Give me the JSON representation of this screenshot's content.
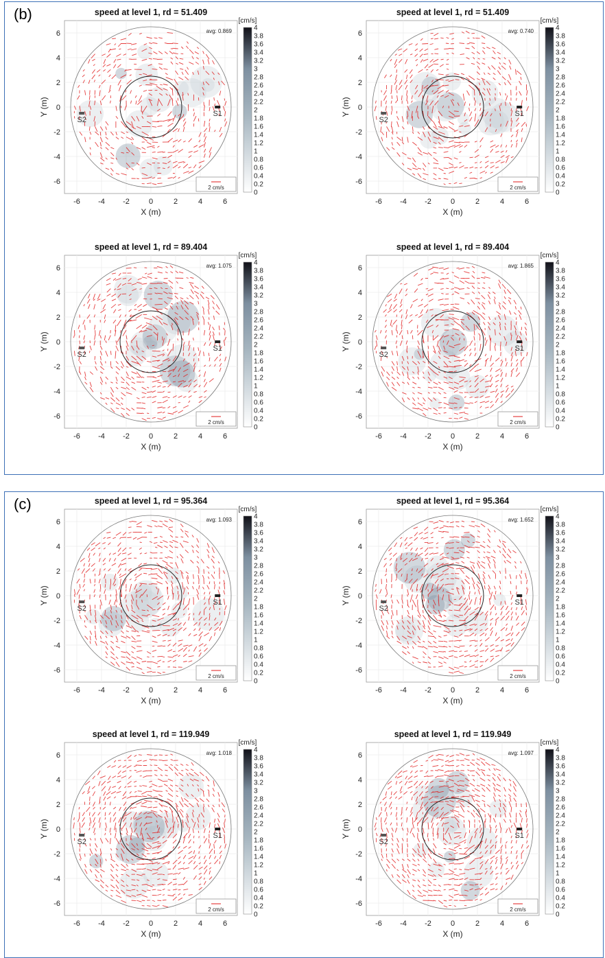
{
  "groups": [
    {
      "label": "(b)"
    },
    {
      "label": "(c)"
    }
  ],
  "colors": {
    "frame": "#3b6fb6",
    "vector": "#e11b1b",
    "speed_low": "#ffffff",
    "speed_mid": "#7d8fa0",
    "speed_high": "#111118"
  },
  "chart_data": [
    {
      "type": "heatmap",
      "group": "(b)",
      "title": "speed at level 1, rd = 51.409",
      "avg": "avg: 0.869",
      "xlabel": "X (m)",
      "ylabel": "Y (m)",
      "xlim": [
        -7,
        7
      ],
      "ylim": [
        -7,
        7
      ],
      "xticks": [
        "-6",
        "-4",
        "-2",
        "0",
        "2",
        "4",
        "6"
      ],
      "yticks": [
        "6",
        "4",
        "2",
        "0",
        "-2",
        "-4",
        "-6"
      ],
      "colorbar_unit": "[cm/s]",
      "colorbar_ticks": [
        "4",
        "3.8",
        "3.6",
        "3.4",
        "3.2",
        "3",
        "2.8",
        "2.6",
        "2.4",
        "2.2",
        "2",
        "1.8",
        "1.6",
        "1.4",
        "1.2",
        "1",
        "0.8",
        "0.6",
        "0.4",
        "0.2",
        "0"
      ],
      "stations": [
        "S1",
        "S2"
      ],
      "reference_vector": "2 cm/s",
      "outer_circle_radius": 6.5,
      "inner_circle_radius": 2.5,
      "grid": true
    },
    {
      "type": "heatmap",
      "group": "(b)",
      "title": "speed at level 1, rd = 51.409",
      "avg": "avg: 0.740",
      "xlabel": "X (m)",
      "ylabel": "Y (m)",
      "xlim": [
        -7,
        7
      ],
      "ylim": [
        -7,
        7
      ],
      "xticks": [
        "-6",
        "-4",
        "-2",
        "0",
        "2",
        "4",
        "6"
      ],
      "yticks": [
        "6",
        "4",
        "2",
        "0",
        "-2",
        "-4",
        "-6"
      ],
      "colorbar_unit": "[cm/s]",
      "colorbar_ticks": [
        "4",
        "3.8",
        "3.6",
        "3.4",
        "3.2",
        "3",
        "2.8",
        "2.6",
        "2.4",
        "2.2",
        "2",
        "1.8",
        "1.6",
        "1.4",
        "1.2",
        "1",
        "0.8",
        "0.6",
        "0.4",
        "0.2",
        "0"
      ],
      "stations": [
        "S1",
        "S2"
      ],
      "reference_vector": "2 cm/s",
      "outer_circle_radius": 6.5,
      "inner_circle_radius": 2.5,
      "grid": true
    },
    {
      "type": "heatmap",
      "group": "(b)",
      "title": "speed at level 1, rd = 89.404",
      "avg": "avg: 1.075",
      "xlabel": "X (m)",
      "ylabel": "Y (m)",
      "xlim": [
        -7,
        7
      ],
      "ylim": [
        -7,
        7
      ],
      "xticks": [
        "-6",
        "-4",
        "-2",
        "0",
        "2",
        "4",
        "6"
      ],
      "yticks": [
        "6",
        "4",
        "2",
        "0",
        "-2",
        "-4",
        "-6"
      ],
      "colorbar_unit": "[cm/s]",
      "colorbar_ticks": [
        "4",
        "3.8",
        "3.6",
        "3.4",
        "3.2",
        "3",
        "2.8",
        "2.6",
        "2.4",
        "2.2",
        "2",
        "1.8",
        "1.6",
        "1.4",
        "1.2",
        "1",
        "0.8",
        "0.6",
        "0.4",
        "0.2",
        "0"
      ],
      "stations": [
        "S1",
        "S2"
      ],
      "reference_vector": "2 cm/s",
      "outer_circle_radius": 6.5,
      "inner_circle_radius": 2.5,
      "grid": true
    },
    {
      "type": "heatmap",
      "group": "(b)",
      "title": "speed at level 1, rd = 89.404",
      "avg": "avg: 1.865",
      "xlabel": "X (m)",
      "ylabel": "Y (m)",
      "xlim": [
        -7,
        7
      ],
      "ylim": [
        -7,
        7
      ],
      "xticks": [
        "-6",
        "-4",
        "-2",
        "0",
        "2",
        "4",
        "6"
      ],
      "yticks": [
        "6",
        "4",
        "2",
        "0",
        "-2",
        "-4",
        "-6"
      ],
      "colorbar_unit": "[cm/s]",
      "colorbar_ticks": [
        "4",
        "3.8",
        "3.6",
        "3.4",
        "3.2",
        "3",
        "2.8",
        "2.6",
        "2.4",
        "2.2",
        "2",
        "1.8",
        "1.6",
        "1.4",
        "1.2",
        "1",
        "0.8",
        "0.6",
        "0.4",
        "0.2",
        "0"
      ],
      "stations": [
        "S1",
        "S2"
      ],
      "reference_vector": "2 cm/s",
      "outer_circle_radius": 6.5,
      "inner_circle_radius": 2.5,
      "grid": true
    },
    {
      "type": "heatmap",
      "group": "(c)",
      "title": "speed at level 1, rd = 95.364",
      "avg": "avg: 1.093",
      "xlabel": "X (m)",
      "ylabel": "Y (m)",
      "xlim": [
        -7,
        7
      ],
      "ylim": [
        -7,
        7
      ],
      "xticks": [
        "-6",
        "-4",
        "-2",
        "0",
        "2",
        "4",
        "6"
      ],
      "yticks": [
        "6",
        "4",
        "2",
        "0",
        "-2",
        "-4",
        "-6"
      ],
      "colorbar_unit": "[cm/s]",
      "colorbar_ticks": [
        "4",
        "3.8",
        "3.6",
        "3.4",
        "3.2",
        "3",
        "2.8",
        "2.6",
        "2.4",
        "2.2",
        "2",
        "1.8",
        "1.6",
        "1.4",
        "1.2",
        "1",
        "0.8",
        "0.6",
        "0.4",
        "0.2",
        "0"
      ],
      "stations": [
        "S1",
        "S2"
      ],
      "reference_vector": "2 cm/s",
      "outer_circle_radius": 6.5,
      "inner_circle_radius": 2.5,
      "grid": true
    },
    {
      "type": "heatmap",
      "group": "(c)",
      "title": "speed at level 1, rd = 95.364",
      "avg": "avg: 1.652",
      "xlabel": "X (m)",
      "ylabel": "Y (m)",
      "xlim": [
        -7,
        7
      ],
      "ylim": [
        -7,
        7
      ],
      "xticks": [
        "-6",
        "-4",
        "-2",
        "0",
        "2",
        "4",
        "6"
      ],
      "yticks": [
        "6",
        "4",
        "2",
        "0",
        "-2",
        "-4",
        "-6"
      ],
      "colorbar_unit": "[cm/s]",
      "colorbar_ticks": [
        "4",
        "3.8",
        "3.6",
        "3.4",
        "3.2",
        "3",
        "2.8",
        "2.6",
        "2.4",
        "2.2",
        "2",
        "1.8",
        "1.6",
        "1.4",
        "1.2",
        "1",
        "0.8",
        "0.6",
        "0.4",
        "0.2",
        "0"
      ],
      "stations": [
        "S1",
        "S2"
      ],
      "reference_vector": "2 cm/s",
      "outer_circle_radius": 6.5,
      "inner_circle_radius": 2.5,
      "grid": true
    },
    {
      "type": "heatmap",
      "group": "(c)",
      "title": "speed at level 1, rd = 119.949",
      "avg": "avg: 1.018",
      "xlabel": "X (m)",
      "ylabel": "Y (m)",
      "xlim": [
        -7,
        7
      ],
      "ylim": [
        -7,
        7
      ],
      "xticks": [
        "-6",
        "-4",
        "-2",
        "0",
        "2",
        "4",
        "6"
      ],
      "yticks": [
        "6",
        "4",
        "2",
        "0",
        "-2",
        "-4",
        "-6"
      ],
      "colorbar_unit": "[cm/s]",
      "colorbar_ticks": [
        "4",
        "3.8",
        "3.6",
        "3.4",
        "3.2",
        "3",
        "2.8",
        "2.6",
        "2.4",
        "2.2",
        "2",
        "1.8",
        "1.6",
        "1.4",
        "1.2",
        "1",
        "0.8",
        "0.6",
        "0.4",
        "0.2",
        "0"
      ],
      "stations": [
        "S1",
        "S2"
      ],
      "reference_vector": "2 cm/s",
      "outer_circle_radius": 6.5,
      "inner_circle_radius": 2.5,
      "grid": true
    },
    {
      "type": "heatmap",
      "group": "(c)",
      "title": "speed at level 1, rd = 119.949",
      "avg": "avg: 1.097",
      "xlabel": "X (m)",
      "ylabel": "Y (m)",
      "xlim": [
        -7,
        7
      ],
      "ylim": [
        -7,
        7
      ],
      "xticks": [
        "-6",
        "-4",
        "-2",
        "0",
        "2",
        "4",
        "6"
      ],
      "yticks": [
        "6",
        "4",
        "2",
        "0",
        "-2",
        "-4",
        "-6"
      ],
      "colorbar_unit": "[cm/s]",
      "colorbar_ticks": [
        "4",
        "3.8",
        "3.6",
        "3.4",
        "3.2",
        "3",
        "2.8",
        "2.6",
        "2.4",
        "2.2",
        "2",
        "1.8",
        "1.6",
        "1.4",
        "1.2",
        "1",
        "0.8",
        "0.6",
        "0.4",
        "0.2",
        "0"
      ],
      "stations": [
        "S1",
        "S2"
      ],
      "reference_vector": "2 cm/s",
      "outer_circle_radius": 6.5,
      "inner_circle_radius": 2.5,
      "grid": true
    }
  ]
}
